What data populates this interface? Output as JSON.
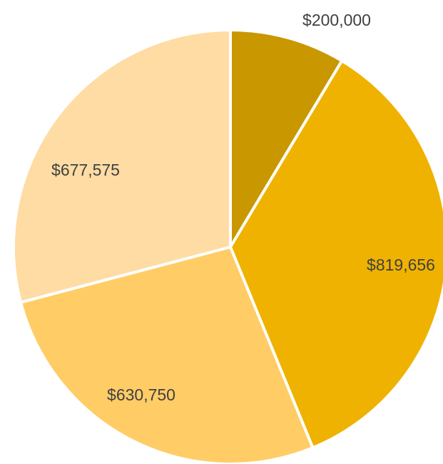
{
  "chart_data": {
    "type": "pie",
    "title": "",
    "start_angle_deg": 0,
    "direction": "clockwise",
    "slices": [
      {
        "value": 200000,
        "label": "$200,000",
        "color": "#C99700"
      },
      {
        "value": 819656,
        "label": "$819,656",
        "color": "#EFB200"
      },
      {
        "value": 630750,
        "label": "$630,750",
        "color": "#FFCC66"
      },
      {
        "value": 677575,
        "label": "$677,575",
        "color": "#FEDCA4"
      }
    ]
  }
}
